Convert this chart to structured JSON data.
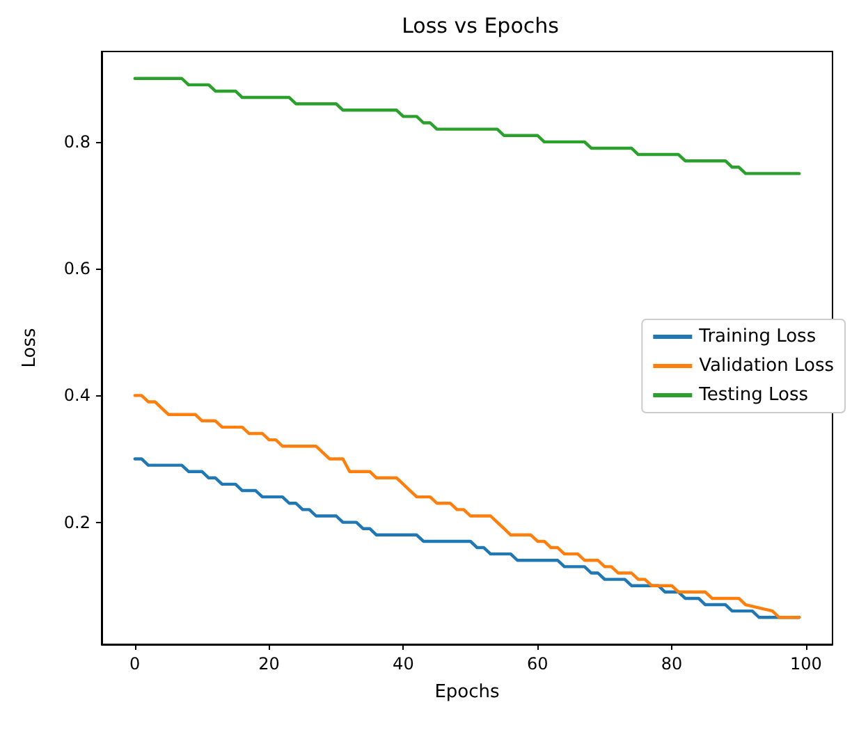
{
  "chart_data": {
    "type": "line",
    "title": "Loss vs Epochs",
    "xlabel": "Epochs",
    "ylabel": "Loss",
    "xlim": [
      -4.95,
      103.95
    ],
    "xticks": [
      0,
      20,
      40,
      60,
      80,
      100
    ],
    "ylim": [
      0.0075,
      0.9425
    ],
    "yticks": [
      0.2,
      0.4,
      0.6,
      0.8
    ],
    "grid": false,
    "legend": "right",
    "marker": "none",
    "line_style": "solid",
    "series": [
      {
        "name": "Training Loss",
        "color": "#1f77b4",
        "x": [
          0,
          1,
          2,
          7,
          8,
          10,
          11,
          12,
          13,
          15,
          16,
          18,
          19,
          22,
          23,
          24,
          25,
          26,
          27,
          30,
          31,
          33,
          34,
          35,
          36,
          42,
          43,
          50,
          51,
          52,
          53,
          56,
          57,
          63,
          64,
          67,
          68,
          69,
          70,
          73,
          74,
          78,
          79,
          81,
          82,
          84,
          85,
          88,
          89,
          92,
          93,
          99
        ],
        "values": [
          0.3,
          0.3,
          0.29,
          0.29,
          0.28,
          0.28,
          0.27,
          0.27,
          0.26,
          0.26,
          0.25,
          0.25,
          0.24,
          0.24,
          0.23,
          0.23,
          0.22,
          0.22,
          0.21,
          0.21,
          0.2,
          0.2,
          0.19,
          0.19,
          0.18,
          0.18,
          0.17,
          0.17,
          0.16,
          0.16,
          0.15,
          0.15,
          0.14,
          0.14,
          0.13,
          0.13,
          0.12,
          0.12,
          0.11,
          0.11,
          0.1,
          0.1,
          0.09,
          0.09,
          0.08,
          0.08,
          0.07,
          0.07,
          0.06,
          0.06,
          0.05,
          0.05
        ]
      },
      {
        "name": "Validation Loss",
        "color": "#ff7f0e",
        "x": [
          0,
          1,
          2,
          3,
          4,
          5,
          9,
          10,
          12,
          13,
          16,
          17,
          19,
          20,
          21,
          22,
          27,
          28,
          29,
          31,
          32,
          35,
          36,
          39,
          40,
          41,
          42,
          44,
          45,
          47,
          48,
          49,
          50,
          53,
          54,
          55,
          56,
          59,
          60,
          61,
          62,
          63,
          64,
          66,
          67,
          69,
          70,
          71,
          72,
          74,
          75,
          76,
          77,
          80,
          81,
          85,
          86,
          90,
          91,
          95,
          96,
          99
        ],
        "values": [
          0.4,
          0.4,
          0.39,
          0.39,
          0.38,
          0.37,
          0.37,
          0.36,
          0.36,
          0.35,
          0.35,
          0.34,
          0.34,
          0.33,
          0.33,
          0.32,
          0.32,
          0.31,
          0.3,
          0.3,
          0.28,
          0.28,
          0.27,
          0.27,
          0.26,
          0.25,
          0.24,
          0.24,
          0.23,
          0.23,
          0.22,
          0.22,
          0.21,
          0.21,
          0.2,
          0.19,
          0.18,
          0.18,
          0.17,
          0.17,
          0.16,
          0.16,
          0.15,
          0.15,
          0.14,
          0.14,
          0.13,
          0.13,
          0.12,
          0.12,
          0.11,
          0.11,
          0.1,
          0.1,
          0.09,
          0.09,
          0.08,
          0.08,
          0.07,
          0.06,
          0.05,
          0.05
        ]
      },
      {
        "name": "Testing Loss",
        "color": "#2ca02c",
        "x": [
          0,
          7,
          8,
          11,
          12,
          15,
          16,
          23,
          24,
          30,
          31,
          39,
          40,
          42,
          43,
          44,
          45,
          54,
          55,
          60,
          61,
          67,
          68,
          74,
          75,
          81,
          82,
          88,
          89,
          90,
          91,
          99
        ],
        "values": [
          0.9,
          0.9,
          0.89,
          0.89,
          0.88,
          0.88,
          0.87,
          0.87,
          0.86,
          0.86,
          0.85,
          0.85,
          0.84,
          0.84,
          0.83,
          0.83,
          0.82,
          0.82,
          0.81,
          0.81,
          0.8,
          0.8,
          0.79,
          0.79,
          0.78,
          0.78,
          0.77,
          0.77,
          0.76,
          0.76,
          0.75,
          0.75
        ]
      }
    ]
  }
}
